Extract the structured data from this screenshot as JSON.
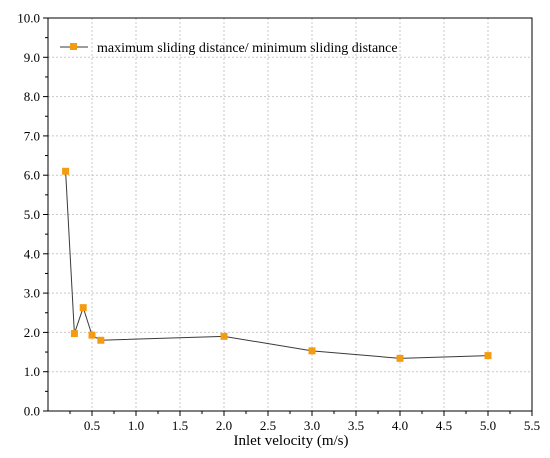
{
  "chart_data": {
    "type": "line",
    "title": "",
    "xlabel": "Inlet velocity (m/s)",
    "ylabel": "",
    "xlim": [
      0.0,
      5.5
    ],
    "ylim": [
      0.0,
      10.0
    ],
    "x_ticks": [
      0.5,
      1.0,
      1.5,
      2.0,
      2.5,
      3.0,
      3.5,
      4.0,
      4.5,
      5.0,
      5.5
    ],
    "x_tick_labels": [
      "0.5",
      "1.0",
      "1.5",
      "2.0",
      "2.5",
      "3.0",
      "3.5",
      "4.0",
      "4.5",
      "5.0",
      "5.5"
    ],
    "y_ticks": [
      0.0,
      1.0,
      2.0,
      3.0,
      4.0,
      5.0,
      6.0,
      7.0,
      8.0,
      9.0,
      10.0
    ],
    "y_tick_labels": [
      "0.0",
      "1.0",
      "2.0",
      "3.0",
      "4.0",
      "5.0",
      "6.0",
      "7.0",
      "8.0",
      "9.0",
      "10.0"
    ],
    "grid": true,
    "legend_position": "top-left",
    "series": [
      {
        "name": "maximum sliding distance/ minimum sliding distance",
        "x": [
          0.2,
          0.3,
          0.4,
          0.5,
          0.6,
          2.0,
          3.0,
          4.0,
          5.0
        ],
        "y": [
          6.1,
          1.97,
          2.63,
          1.93,
          1.8,
          1.9,
          1.53,
          1.34,
          1.41
        ],
        "line_color": "#3a3a3a",
        "marker_color": "#f39c12",
        "marker": "square"
      }
    ]
  }
}
